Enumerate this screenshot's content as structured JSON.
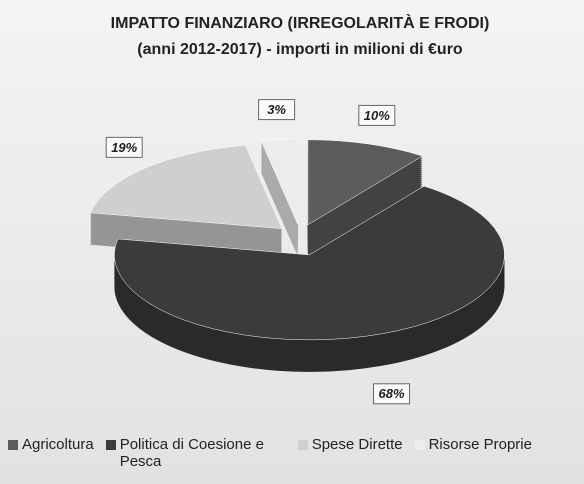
{
  "chart_data": {
    "type": "pie3d",
    "title": "IMPATTO FINANZIARO (IRREGOLARITÀ E FRODI)",
    "subtitle": "(anni 2012-2017) - importi in milioni di €uro",
    "series": [
      {
        "name": "Agricoltura",
        "color": "#5c5c5c",
        "values": [
          10
        ],
        "value_labels": [
          "10%"
        ]
      },
      {
        "name": "Politica di Coesione e Pesca",
        "color": "#3b3b3b",
        "values": [
          68
        ],
        "value_labels": [
          "68%"
        ]
      },
      {
        "name": "Spese Dirette",
        "color": "#cfcfcf",
        "values": [
          19
        ],
        "value_labels": [
          "19%"
        ]
      },
      {
        "name": "Risorse Proprie",
        "color": "#ececec",
        "values": [
          3
        ],
        "value_labels": [
          "3%"
        ]
      }
    ],
    "legend": "bottom"
  }
}
